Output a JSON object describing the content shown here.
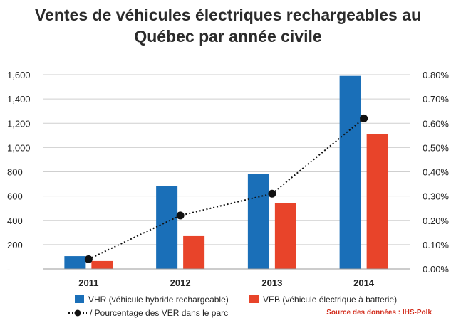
{
  "title_lines": [
    "Ventes de véhicules électriques rechargeables au",
    "Québec par année civile"
  ],
  "source": "Source des données : IHS-Polk",
  "colors": {
    "vhr": "#1a6fb8",
    "veb": "#e8442a",
    "line": "#111111",
    "grid": "#cfcfcf"
  },
  "chart_data": {
    "type": "bar",
    "title": "Ventes de véhicules électriques rechargeables au Québec par année civile",
    "categories": [
      "2011",
      "2012",
      "2013",
      "2014"
    ],
    "series": [
      {
        "name": "VHR (véhicule hybride rechargeable)",
        "type": "bar",
        "axis": "left",
        "values": [
          105,
          685,
          785,
          1590
        ]
      },
      {
        "name": "VEB (véhicule électrique à batterie)",
        "type": "bar",
        "axis": "left",
        "values": [
          65,
          270,
          545,
          1110
        ]
      },
      {
        "name": "/ Pourcentage des VER dans le parc",
        "type": "line",
        "axis": "right",
        "values": [
          0.04,
          0.22,
          0.31,
          0.62
        ]
      }
    ],
    "y_left": {
      "ylim": [
        0,
        1600
      ],
      "tick_labels": [
        "-",
        "200",
        "400",
        "600",
        "800",
        "1,000",
        "1,200",
        "1,400",
        "1,600"
      ]
    },
    "y_right": {
      "ylim": [
        0,
        0.8
      ],
      "tick_labels": [
        "0.00%",
        "0.10%",
        "0.20%",
        "0.30%",
        "0.40%",
        "0.50%",
        "0.60%",
        "0.70%",
        "0.80%"
      ]
    },
    "grid": true,
    "legend_position": "bottom"
  }
}
